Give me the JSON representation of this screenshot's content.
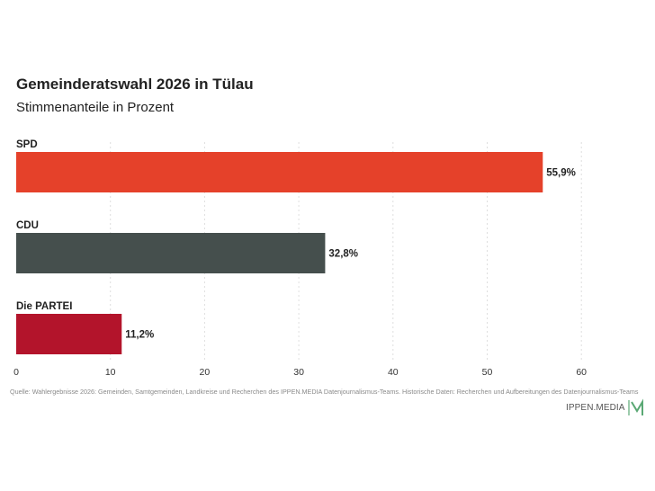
{
  "chart_data": {
    "type": "bar",
    "orientation": "horizontal",
    "title": "Gemeinderatswahl 2026 in Tülau",
    "subtitle": "Stimmenanteile in Prozent",
    "categories": [
      "SPD",
      "CDU",
      "Die PARTEI"
    ],
    "values": [
      55.9,
      32.8,
      11.2
    ],
    "value_labels": [
      "55,9%",
      "32,8%",
      "11,2%"
    ],
    "colors": [
      "#e5412a",
      "#454f4d",
      "#b3142b"
    ],
    "xlim": [
      0,
      60
    ],
    "x_ticks": [
      0,
      10,
      20,
      30,
      40,
      50,
      60
    ],
    "x_tick_labels": [
      "0",
      "10",
      "20",
      "30",
      "40",
      "50",
      "60"
    ],
    "xlabel": "",
    "ylabel": "",
    "grid": "vertical-dashed",
    "legend": "none"
  },
  "source_text": "Quelle: Wahlergebnisse 2026: Gemeinden, Samtgemeinden, Landkreise und Recherchen des IPPEN.MEDIA Datenjournalismus-Teams. Historische Daten: Recherchen und Aufbereitungen des Datenjournalismus-Teams",
  "brand": {
    "name": "IPPEN.MEDIA",
    "logo_icon": "ippen-media-m-logo",
    "logo_color": "#5aa874"
  }
}
